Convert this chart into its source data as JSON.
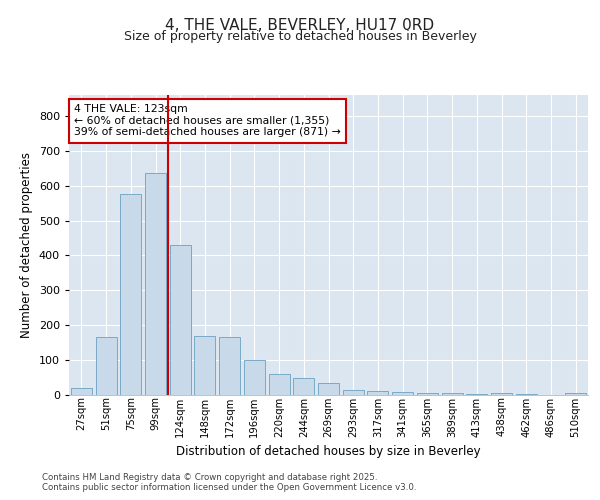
{
  "title_line1": "4, THE VALE, BEVERLEY, HU17 0RD",
  "title_line2": "Size of property relative to detached houses in Beverley",
  "xlabel": "Distribution of detached houses by size in Beverley",
  "ylabel": "Number of detached properties",
  "categories": [
    "27sqm",
    "51sqm",
    "75sqm",
    "99sqm",
    "124sqm",
    "148sqm",
    "172sqm",
    "196sqm",
    "220sqm",
    "244sqm",
    "269sqm",
    "293sqm",
    "317sqm",
    "341sqm",
    "365sqm",
    "389sqm",
    "413sqm",
    "438sqm",
    "462sqm",
    "486sqm",
    "510sqm"
  ],
  "values": [
    20,
    165,
    575,
    635,
    430,
    170,
    165,
    100,
    60,
    48,
    35,
    15,
    12,
    9,
    7,
    5,
    3,
    5,
    2,
    1,
    7
  ],
  "bar_color": "#c8daea",
  "bar_edge_color": "#7aaac8",
  "vline_color": "#cc0000",
  "annotation_text": "4 THE VALE: 123sqm\n← 60% of detached houses are smaller (1,355)\n39% of semi-detached houses are larger (871) →",
  "annotation_box_color": "#ffffff",
  "annotation_box_edge": "#cc0000",
  "ylim": [
    0,
    860
  ],
  "yticks": [
    0,
    100,
    200,
    300,
    400,
    500,
    600,
    700,
    800
  ],
  "fig_background": "#ffffff",
  "plot_background": "#dce6f0",
  "grid_color": "#ffffff",
  "footer_line1": "Contains HM Land Registry data © Crown copyright and database right 2025.",
  "footer_line2": "Contains public sector information licensed under the Open Government Licence v3.0."
}
